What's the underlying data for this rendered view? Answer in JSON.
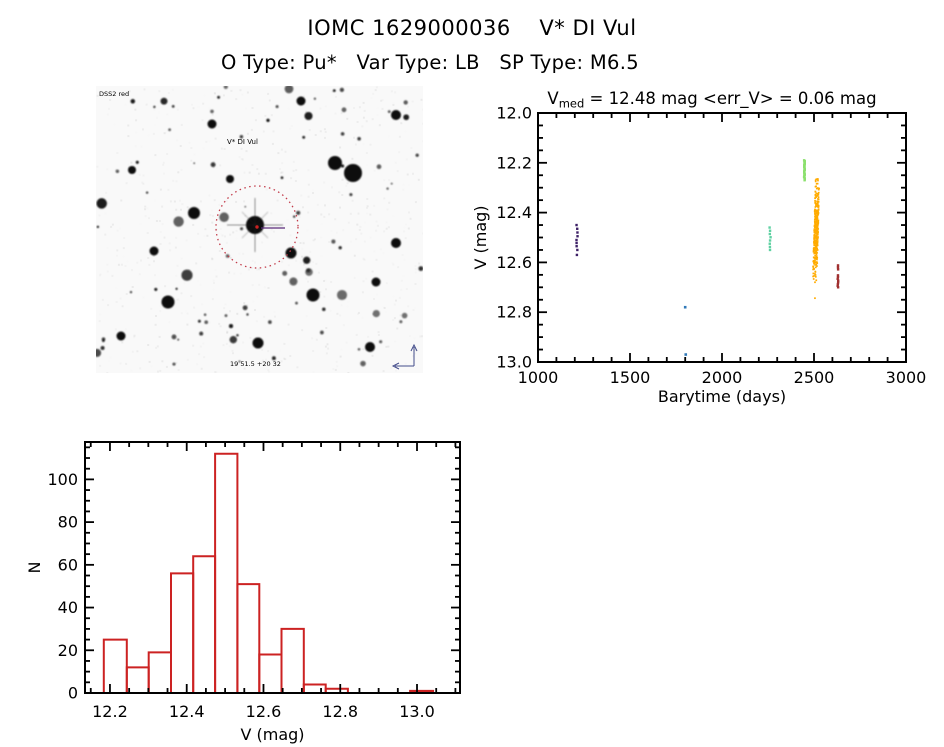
{
  "page": {
    "title": "IOMC 1629000036    V* DI Vul",
    "subtitle": "O Type: Pu*   Var Type: LB   SP Type: M6.5"
  },
  "finding_chart": {
    "survey_label": "DSS2 red",
    "target_label": "V* DI Vul",
    "coords_label": "19 51.5 +20 32",
    "circle_color": "#c23b4a",
    "target_label_color": "#cc2222",
    "annotation_color": "#253078",
    "crosshair_color": "#5a2a7a",
    "background_color": "#f9f9f9"
  },
  "chart_data": [
    {
      "id": "lightcurve",
      "type": "scatter",
      "title_parts": {
        "pre": "V",
        "sub": "med",
        "rest": " = 12.48 mag <err_V> = 0.06 mag"
      },
      "xlabel": "Barytime (days)",
      "ylabel": "V (mag)",
      "xlim": [
        1000,
        3000
      ],
      "ylim_top": 12.0,
      "ylim_bottom": 13.0,
      "x_major_ticks": [
        1000,
        1500,
        2000,
        2500,
        3000
      ],
      "x_minor_step": 100,
      "y_major_ticks": [
        12.0,
        12.2,
        12.4,
        12.6,
        12.8,
        13.0
      ],
      "y_minor_step": 0.05,
      "axis_color": "#000000",
      "series": [
        {
          "name": "epoch-1",
          "color": "#3d2066",
          "marker": 2.4,
          "x_center": 1212,
          "x_jitter": 3,
          "v_values": [
            12.45,
            12.465,
            12.48,
            12.495,
            12.51,
            12.522,
            12.535,
            12.55,
            12.57
          ]
        },
        {
          "name": "epoch-2",
          "color": "#3179b8",
          "marker": 2.6,
          "points": [
            [
              1800,
              12.78
            ],
            [
              1803,
              12.97
            ]
          ]
        },
        {
          "name": "epoch-3",
          "color": "#5ed1a2",
          "marker": 2.4,
          "x_center": 2261,
          "x_jitter": 3,
          "v_values": [
            12.46,
            12.473,
            12.486,
            12.499,
            12.512,
            12.525,
            12.538,
            12.55
          ]
        },
        {
          "name": "epoch-4",
          "color": "#8ce06e",
          "marker": 2.4,
          "x_center": 2448,
          "x_jitter": 2,
          "dense": {
            "v_min": 12.19,
            "v_max": 12.27,
            "n": 26
          }
        },
        {
          "name": "epoch-5",
          "color": "#ffab00",
          "marker": 1.7,
          "x_center": 2512,
          "x_jitter": 11,
          "gauss": {
            "v_mean": 12.47,
            "v_sd": 0.1,
            "v_min": 12.265,
            "v_max": 12.765,
            "n": 320,
            "tilt_days_per_mag": -40
          }
        },
        {
          "name": "epoch-6",
          "color": "#a03030",
          "marker": 2.4,
          "x_center": 2630,
          "x_jitter": 2,
          "v_values": [
            12.612,
            12.62,
            12.628,
            12.652,
            12.659,
            12.666,
            12.673,
            12.68,
            12.687,
            12.694,
            12.7
          ]
        }
      ]
    },
    {
      "id": "histogram",
      "type": "bar",
      "xlabel": "V (mag)",
      "ylabel": "N",
      "xlim": [
        12.135,
        13.112
      ],
      "ylim": [
        0,
        117.5
      ],
      "x_major_ticks": [
        12.2,
        12.4,
        12.6,
        12.8,
        13.0
      ],
      "x_minor_step": 0.05,
      "y_major_ticks": [
        0,
        20,
        40,
        60,
        80,
        100
      ],
      "y_minor_step": 5,
      "bar_color": "#cc2222",
      "axis_color": "#000000",
      "bins": [
        {
          "x0": 12.184,
          "x1": 12.244,
          "n": 25
        },
        {
          "x0": 12.244,
          "x1": 12.301,
          "n": 12
        },
        {
          "x0": 12.301,
          "x1": 12.359,
          "n": 19
        },
        {
          "x0": 12.359,
          "x1": 12.417,
          "n": 56
        },
        {
          "x0": 12.417,
          "x1": 12.474,
          "n": 64
        },
        {
          "x0": 12.474,
          "x1": 12.532,
          "n": 112
        },
        {
          "x0": 12.532,
          "x1": 12.589,
          "n": 51
        },
        {
          "x0": 12.589,
          "x1": 12.647,
          "n": 18
        },
        {
          "x0": 12.647,
          "x1": 12.705,
          "n": 30
        },
        {
          "x0": 12.705,
          "x1": 12.762,
          "n": 4
        },
        {
          "x0": 12.762,
          "x1": 12.82,
          "n": 2
        },
        {
          "x0": 12.982,
          "x1": 13.042,
          "n": 1,
          "filled": true
        }
      ]
    }
  ]
}
